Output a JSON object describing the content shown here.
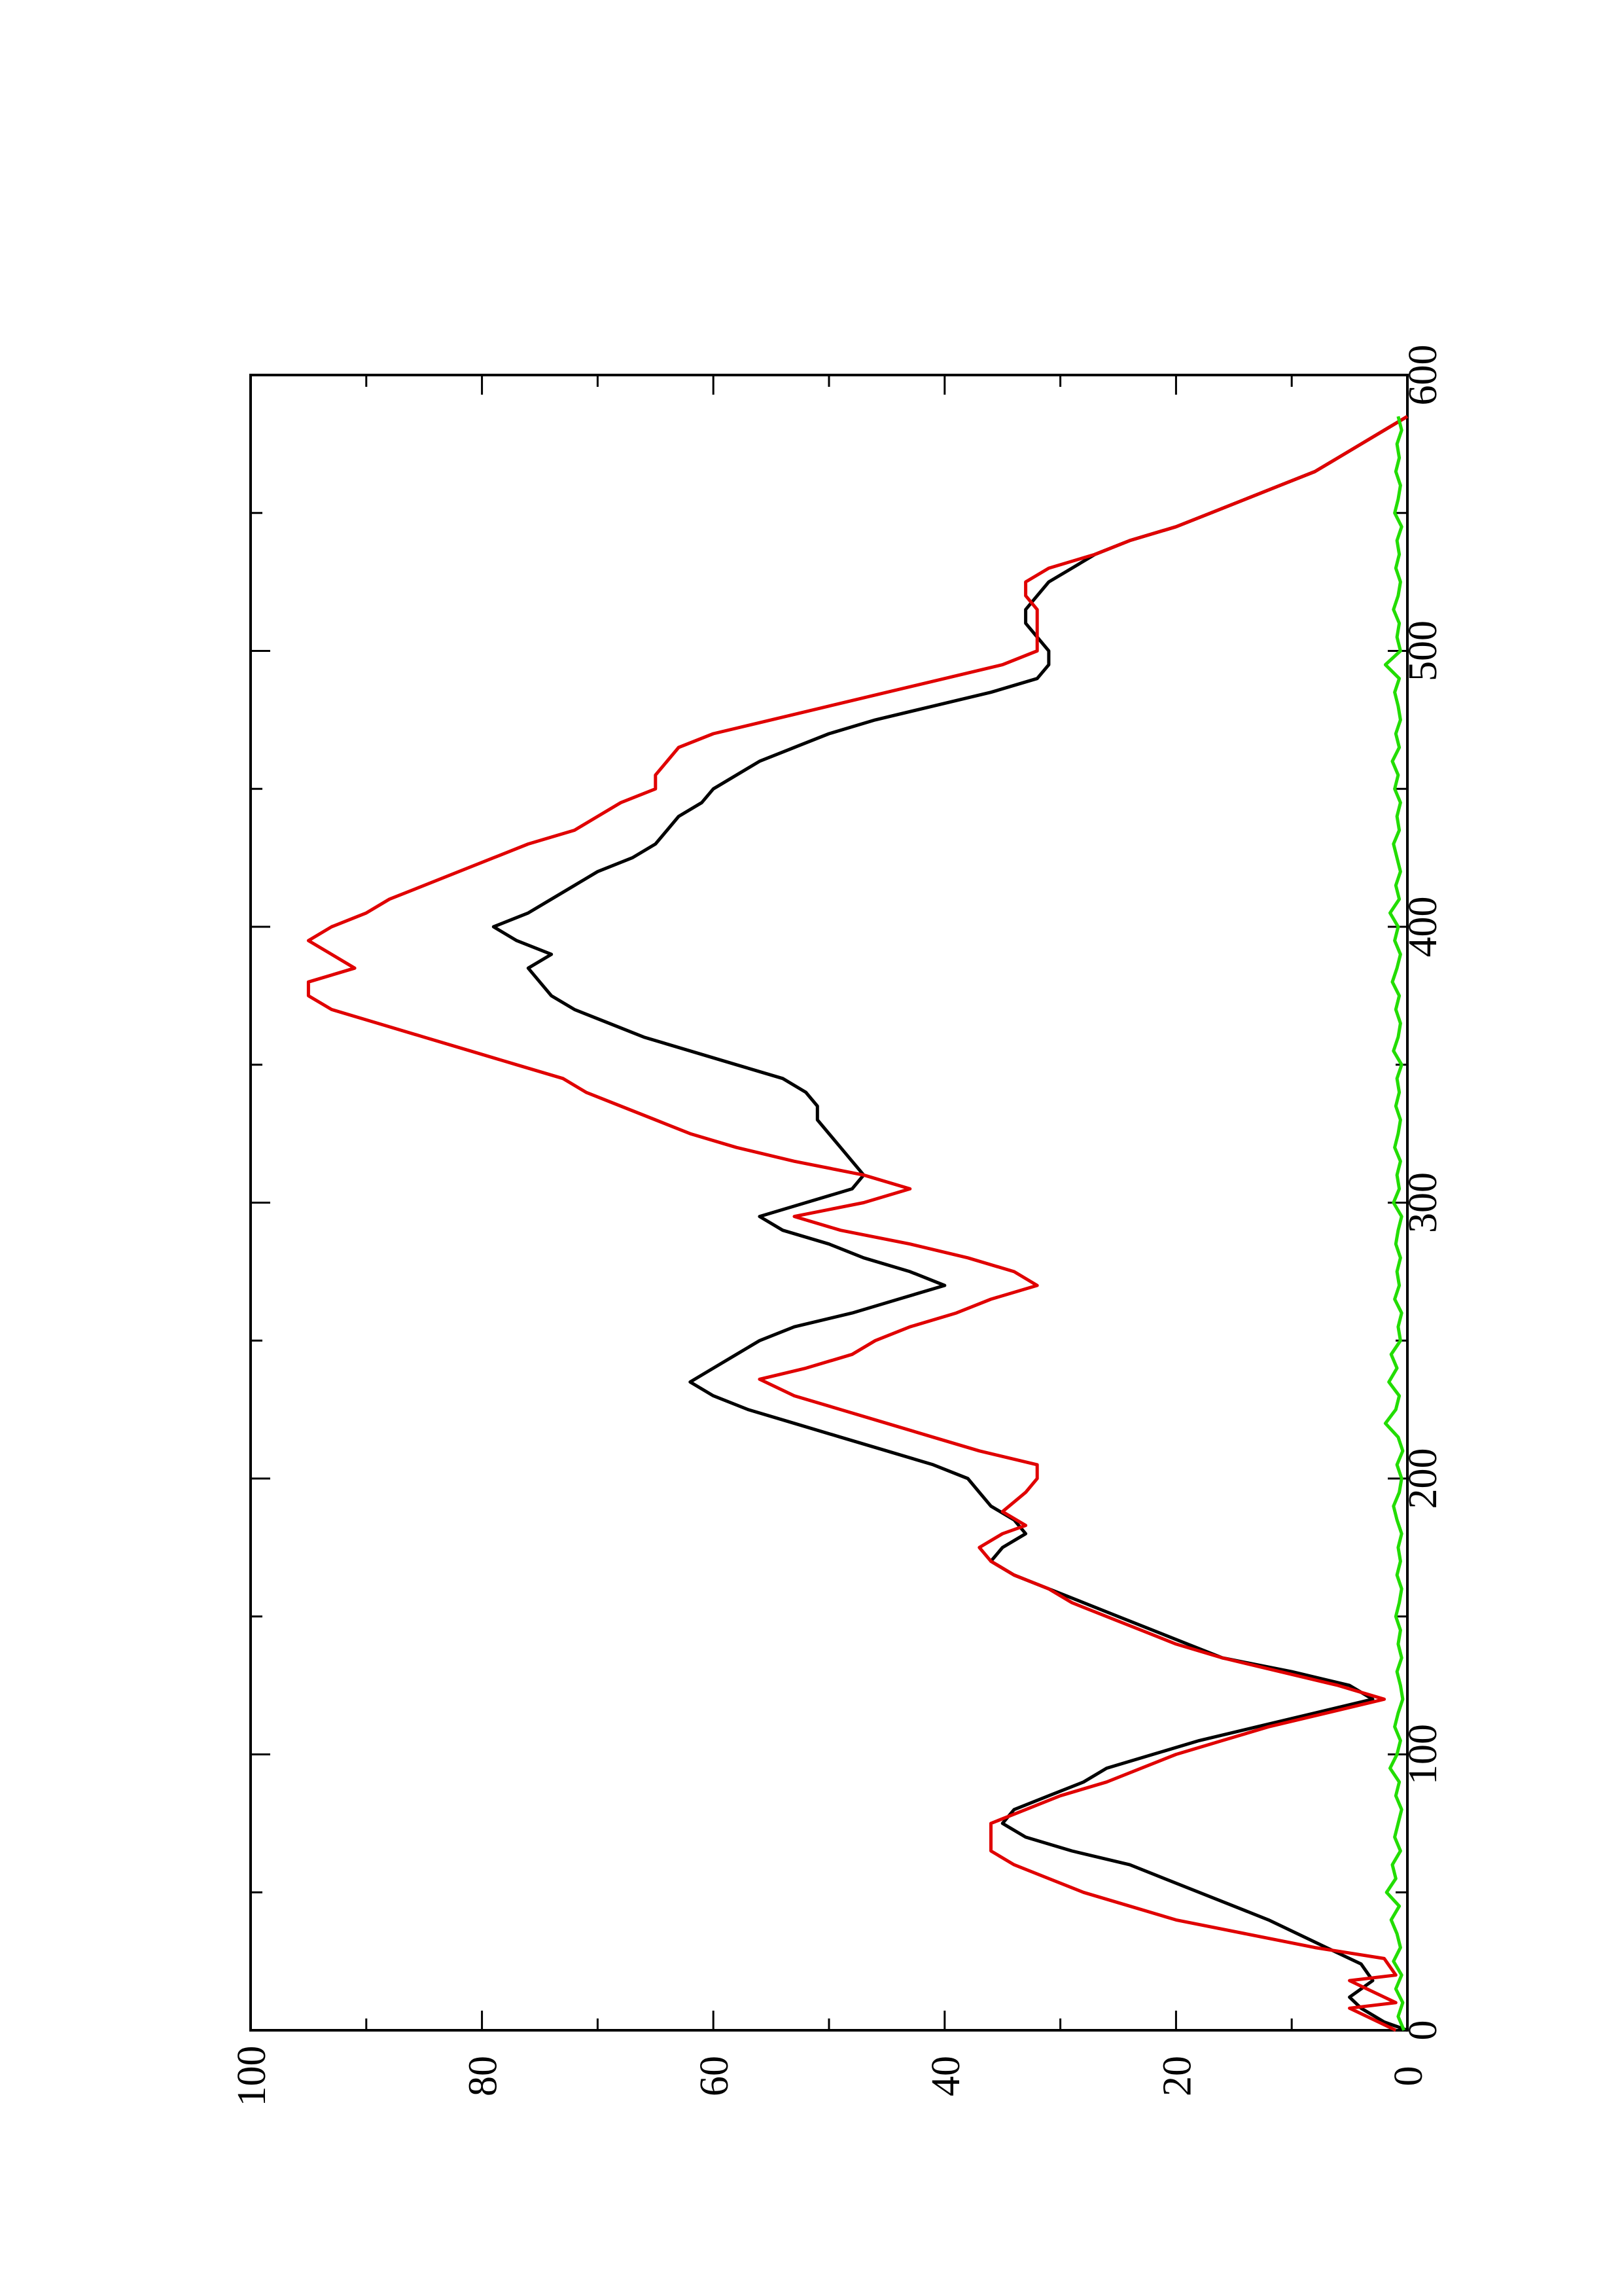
{
  "chart_data": {
    "type": "line",
    "orientation": "rotated-90-counterclockwise",
    "title": "",
    "xlabel": "",
    "ylabel": "",
    "xlim": [
      0,
      600
    ],
    "ylim": [
      0,
      100
    ],
    "x_ticks": [
      "0",
      "100",
      "200",
      "300",
      "400",
      "500",
      "600"
    ],
    "y_ticks": [
      "0",
      "20",
      "40",
      "60",
      "80",
      "100"
    ],
    "x_minor_ticks": [
      50,
      150,
      250,
      350,
      450,
      550
    ],
    "y_minor_ticks": [
      10,
      30,
      50,
      70,
      90
    ],
    "grid": false,
    "legend": "none",
    "series": [
      {
        "color": "#000000",
        "x": [
          0,
          3,
          8,
          12,
          18,
          24,
          30,
          40,
          50,
          60,
          65,
          70,
          75,
          80,
          85,
          90,
          95,
          100,
          105,
          110,
          115,
          120,
          125,
          130,
          135,
          140,
          145,
          150,
          155,
          160,
          165,
          170,
          175,
          180,
          185,
          190,
          195,
          200,
          205,
          210,
          215,
          220,
          225,
          230,
          235,
          240,
          245,
          250,
          255,
          260,
          265,
          270,
          275,
          280,
          285,
          290,
          295,
          300,
          305,
          310,
          315,
          320,
          325,
          330,
          335,
          340,
          345,
          350,
          355,
          360,
          365,
          370,
          375,
          380,
          385,
          390,
          395,
          400,
          405,
          410,
          415,
          420,
          425,
          430,
          435,
          440,
          445,
          450,
          455,
          460,
          465,
          470,
          475,
          480,
          485,
          490,
          495,
          500,
          505,
          510,
          515,
          520,
          525,
          530,
          535,
          540,
          545,
          550,
          555,
          560,
          565,
          570,
          575,
          580,
          585
        ],
        "y": [
          0,
          2,
          4,
          5,
          3,
          4,
          7,
          12,
          18,
          24,
          29,
          33,
          35,
          34,
          31,
          28,
          26,
          22,
          18,
          13,
          8,
          3,
          5,
          10,
          16,
          19,
          22,
          25,
          28,
          31,
          34,
          36,
          35,
          33,
          34,
          36,
          37,
          38,
          41,
          45,
          49,
          53,
          57,
          60,
          62,
          60,
          58,
          56,
          53,
          48,
          44,
          40,
          43,
          47,
          50,
          54,
          56,
          52,
          48,
          47,
          48,
          49,
          50,
          51,
          51,
          52,
          54,
          58,
          62,
          66,
          69,
          72,
          74,
          75,
          76,
          74,
          77,
          79,
          76,
          74,
          72,
          70,
          67,
          65,
          64,
          63,
          61,
          60,
          58,
          56,
          53,
          50,
          46,
          41,
          36,
          32,
          31,
          31,
          32,
          33,
          33,
          32,
          31,
          29,
          27,
          24,
          20,
          17,
          14,
          11,
          8,
          6,
          4,
          2,
          0
        ]
      },
      {
        "color": "#e00000",
        "x": [
          0,
          4,
          8,
          10,
          14,
          18,
          20,
          26,
          30,
          35,
          40,
          45,
          50,
          55,
          60,
          65,
          70,
          75,
          80,
          85,
          90,
          95,
          100,
          105,
          110,
          115,
          120,
          125,
          130,
          135,
          140,
          145,
          150,
          155,
          160,
          165,
          170,
          175,
          180,
          183,
          188,
          195,
          200,
          205,
          210,
          215,
          220,
          225,
          230,
          236,
          240,
          245,
          250,
          255,
          260,
          265,
          270,
          275,
          280,
          285,
          290,
          295,
          300,
          305,
          310,
          315,
          320,
          325,
          330,
          335,
          340,
          345,
          350,
          355,
          360,
          365,
          370,
          375,
          380,
          385,
          390,
          395,
          400,
          405,
          410,
          415,
          420,
          425,
          430,
          435,
          440,
          445,
          450,
          455,
          460,
          465,
          470,
          475,
          480,
          485,
          490,
          495,
          500,
          505,
          510,
          515,
          520,
          525,
          530,
          535,
          540,
          545,
          550,
          555,
          560,
          565,
          570,
          575,
          580,
          585
        ],
        "y": [
          1,
          3,
          5,
          1,
          3,
          5,
          1,
          2,
          8,
          14,
          20,
          24,
          28,
          31,
          34,
          36,
          36,
          36,
          33,
          30,
          26,
          23,
          20,
          16,
          12,
          7,
          2,
          6,
          11,
          16,
          20,
          23,
          26,
          29,
          31,
          34,
          36,
          37,
          35,
          33,
          35,
          33,
          32,
          32,
          37,
          41,
          45,
          49,
          53,
          56,
          52,
          48,
          46,
          43,
          39,
          36,
          32,
          34,
          38,
          43,
          49,
          53,
          47,
          43,
          47,
          53,
          58,
          62,
          65,
          68,
          71,
          73,
          77,
          81,
          85,
          89,
          93,
          95,
          95,
          91,
          93,
          95,
          93,
          90,
          88,
          85,
          82,
          79,
          76,
          72,
          70,
          68,
          65,
          65,
          64,
          63,
          60,
          55,
          50,
          45,
          40,
          35,
          32,
          32,
          32,
          32,
          33,
          33,
          31,
          27,
          24,
          20,
          17,
          14,
          11,
          8,
          6,
          4,
          2,
          0
        ]
      },
      {
        "color": "#22dd00",
        "x": [
          0,
          5,
          10,
          15,
          20,
          25,
          30,
          35,
          40,
          45,
          50,
          55,
          60,
          65,
          70,
          75,
          80,
          85,
          90,
          95,
          100,
          105,
          110,
          115,
          120,
          125,
          130,
          135,
          140,
          145,
          150,
          155,
          160,
          165,
          170,
          175,
          180,
          185,
          190,
          195,
          200,
          205,
          210,
          215,
          220,
          225,
          230,
          235,
          240,
          245,
          250,
          255,
          260,
          265,
          270,
          275,
          280,
          285,
          290,
          295,
          300,
          305,
          310,
          315,
          320,
          325,
          330,
          335,
          340,
          345,
          350,
          355,
          360,
          365,
          370,
          375,
          380,
          385,
          390,
          395,
          400,
          405,
          410,
          415,
          420,
          425,
          430,
          435,
          440,
          445,
          450,
          455,
          460,
          465,
          470,
          475,
          480,
          485,
          490,
          495,
          500,
          505,
          510,
          515,
          520,
          525,
          530,
          535,
          540,
          545,
          550,
          555,
          560,
          565,
          570,
          575,
          580,
          585
        ],
        "y": [
          0.3,
          0.8,
          0.4,
          1.0,
          0.5,
          1.2,
          0.6,
          0.9,
          1.4,
          0.7,
          1.8,
          1.0,
          1.3,
          0.6,
          1.1,
          0.8,
          0.5,
          1.0,
          0.7,
          1.5,
          0.9,
          0.6,
          1.1,
          0.8,
          0.4,
          0.6,
          0.9,
          0.5,
          0.8,
          0.6,
          1.0,
          0.7,
          0.5,
          0.9,
          0.6,
          0.8,
          0.5,
          0.9,
          1.2,
          0.7,
          0.5,
          0.9,
          0.4,
          0.8,
          1.9,
          1.0,
          0.7,
          1.6,
          0.9,
          1.4,
          0.6,
          0.8,
          0.5,
          1.1,
          0.7,
          0.9,
          0.6,
          1.0,
          0.8,
          0.5,
          1.2,
          0.7,
          0.9,
          0.6,
          1.1,
          0.8,
          0.6,
          1.0,
          0.7,
          0.9,
          0.5,
          1.2,
          0.8,
          0.6,
          1.0,
          0.7,
          1.3,
          0.9,
          0.6,
          1.1,
          0.8,
          1.5,
          0.7,
          1.0,
          0.6,
          0.9,
          1.2,
          0.7,
          0.9,
          0.6,
          1.1,
          0.8,
          1.3,
          0.7,
          1.0,
          0.6,
          0.8,
          1.1,
          0.7,
          1.9,
          0.6,
          0.9,
          0.7,
          1.2,
          0.8,
          0.6,
          1.0,
          0.7,
          0.9,
          0.5,
          1.1,
          0.8,
          0.6,
          1.0,
          0.7,
          0.9,
          0.5,
          0.8
        ]
      }
    ]
  }
}
